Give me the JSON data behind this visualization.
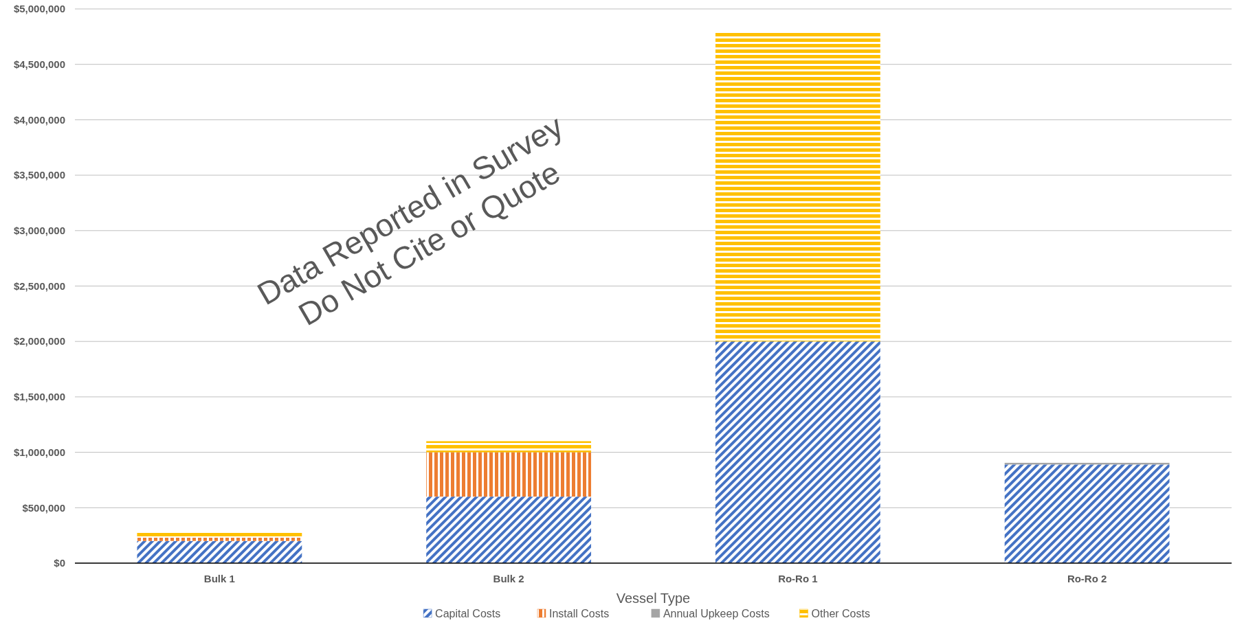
{
  "chart_data": {
    "type": "bar",
    "stacked": true,
    "xlabel": "Vessel Type",
    "categories": [
      "Bulk 1",
      "Bulk 2",
      "Ro-Ro 1",
      "Ro-Ro 2"
    ],
    "series": [
      {
        "name": "Capital Costs",
        "color": "#4472c4",
        "values": [
          200000,
          600000,
          2000000,
          890000
        ]
      },
      {
        "name": "Install Costs",
        "color": "#ed7d31",
        "values": [
          30000,
          400000,
          0,
          0
        ]
      },
      {
        "name": "Annual Upkeep Costs",
        "color": "#a5a5a5",
        "values": [
          0,
          0,
          0,
          15000
        ]
      },
      {
        "name": "Other Costs",
        "color": "#ffc000",
        "values": [
          50000,
          100000,
          2800000,
          0
        ]
      }
    ],
    "ylim": [
      0,
      5000000
    ],
    "yticks": [
      {
        "value": 0,
        "label": "$0"
      },
      {
        "value": 500000,
        "label": "$500,000"
      },
      {
        "value": 1000000,
        "label": "$1,000,000"
      },
      {
        "value": 1500000,
        "label": "$1,500,000"
      },
      {
        "value": 2000000,
        "label": "$2,000,000"
      },
      {
        "value": 2500000,
        "label": "$2,500,000"
      },
      {
        "value": 3000000,
        "label": "$3,000,000"
      },
      {
        "value": 3500000,
        "label": "$3,500,000"
      },
      {
        "value": 4000000,
        "label": "$4,000,000"
      },
      {
        "value": 4500000,
        "label": "$4,500,000"
      },
      {
        "value": 5000000,
        "label": "$5,000,000"
      }
    ],
    "grid": "y",
    "legend": "bottom",
    "annotations": [
      "Data Reported in Survey\nDo Not Cite or Quote"
    ]
  }
}
